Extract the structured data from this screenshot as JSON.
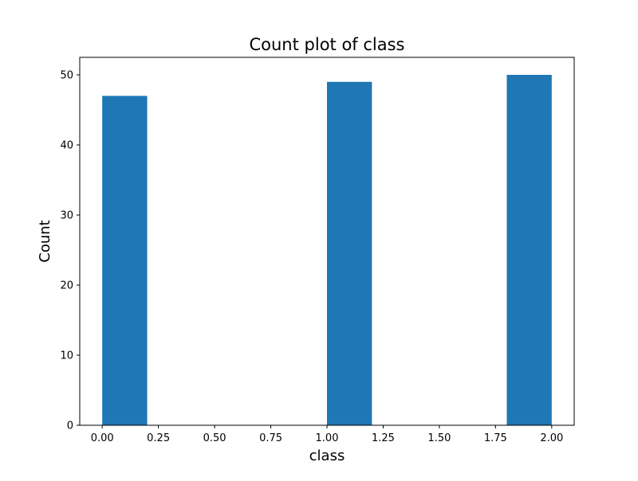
{
  "chart_data": {
    "type": "bar",
    "title": "Count plot of class",
    "xlabel": "class",
    "ylabel": "Count",
    "bars": [
      {
        "x_start": 0.0,
        "x_end": 0.2,
        "value": 47
      },
      {
        "x_start": 1.0,
        "x_end": 1.2,
        "value": 49
      },
      {
        "x_start": 1.8,
        "x_end": 2.0,
        "value": 50
      }
    ],
    "xlim": [
      -0.1,
      2.1
    ],
    "ylim": [
      0,
      52.5
    ],
    "x_ticks": [
      0.0,
      0.25,
      0.5,
      0.75,
      1.0,
      1.25,
      1.5,
      1.75,
      2.0
    ],
    "x_tick_labels": [
      "0.00",
      "0.25",
      "0.50",
      "0.75",
      "1.00",
      "1.25",
      "1.50",
      "1.75",
      "2.00"
    ],
    "y_ticks": [
      0,
      10,
      20,
      30,
      40,
      50
    ],
    "y_tick_labels": [
      "0",
      "10",
      "20",
      "30",
      "40",
      "50"
    ],
    "bar_color": "#1f77b4",
    "grid": false,
    "legend": "none"
  }
}
